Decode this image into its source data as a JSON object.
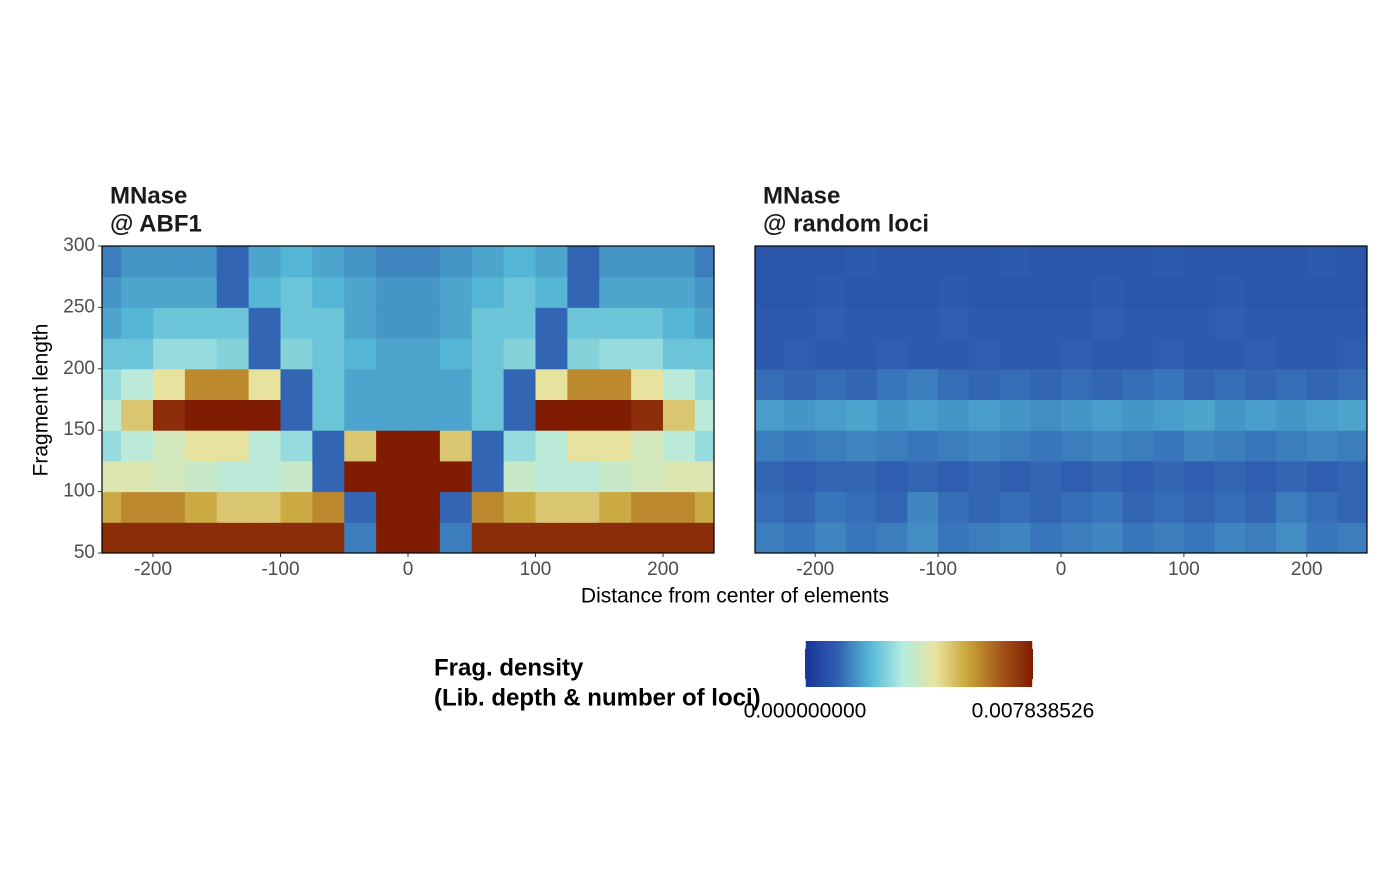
{
  "chart_data": [
    {
      "type": "heatmap",
      "title": "MNase",
      "subtitle": "@ ABF1",
      "x": [
        -237.5,
        -212.5,
        -187.5,
        -162.5,
        -137.5,
        -112.5,
        -87.5,
        -62.5,
        -37.5,
        -12.5,
        12.5,
        37.5,
        62.5,
        87.5,
        112.5,
        137.5,
        162.5,
        187.5,
        212.5,
        237.5
      ],
      "y": [
        62.5,
        87.5,
        112.5,
        137.5,
        162.5,
        187.5,
        212.5,
        237.5,
        262.5,
        287.5
      ],
      "values": [
        [
          0.0075,
          0.0075,
          0.0075,
          0.0075,
          0.0075,
          0.0075,
          0.0075,
          0.0075,
          0.0015,
          0.0078,
          0.0078,
          0.0015,
          0.0075,
          0.0075,
          0.0075,
          0.0075,
          0.0075,
          0.0075,
          0.0075,
          0.0075
        ],
        [
          0.0055,
          0.006,
          0.006,
          0.0055,
          0.005,
          0.005,
          0.0055,
          0.006,
          0.0012,
          0.0078,
          0.0078,
          0.0012,
          0.006,
          0.0055,
          0.005,
          0.005,
          0.0055,
          0.006,
          0.006,
          0.0055
        ],
        [
          0.0042,
          0.0042,
          0.004,
          0.0038,
          0.0035,
          0.0035,
          0.0038,
          0.0012,
          0.0078,
          0.0078,
          0.0078,
          0.0078,
          0.0012,
          0.0038,
          0.0035,
          0.0035,
          0.0038,
          0.004,
          0.0042,
          0.0042
        ],
        [
          0.003,
          0.0035,
          0.004,
          0.0045,
          0.0045,
          0.0035,
          0.003,
          0.0012,
          0.005,
          0.0078,
          0.0078,
          0.005,
          0.0012,
          0.003,
          0.0035,
          0.0045,
          0.0045,
          0.004,
          0.0035,
          0.003
        ],
        [
          0.0035,
          0.005,
          0.0075,
          0.0078,
          0.0078,
          0.0078,
          0.0012,
          0.0025,
          0.002,
          0.002,
          0.002,
          0.002,
          0.0025,
          0.0012,
          0.0078,
          0.0078,
          0.0078,
          0.0075,
          0.005,
          0.0035
        ],
        [
          0.003,
          0.0035,
          0.0045,
          0.006,
          0.006,
          0.0045,
          0.0012,
          0.0025,
          0.002,
          0.002,
          0.002,
          0.002,
          0.0025,
          0.0012,
          0.0045,
          0.006,
          0.006,
          0.0045,
          0.0035,
          0.003
        ],
        [
          0.0025,
          0.0025,
          0.003,
          0.003,
          0.0028,
          0.0012,
          0.0028,
          0.0025,
          0.0022,
          0.002,
          0.002,
          0.0022,
          0.0025,
          0.0028,
          0.0012,
          0.0028,
          0.003,
          0.003,
          0.0025,
          0.0025
        ],
        [
          0.002,
          0.0022,
          0.0025,
          0.0025,
          0.0025,
          0.0012,
          0.0025,
          0.0025,
          0.002,
          0.0018,
          0.0018,
          0.002,
          0.0025,
          0.0025,
          0.0012,
          0.0025,
          0.0025,
          0.0025,
          0.0022,
          0.002
        ],
        [
          0.0018,
          0.002,
          0.002,
          0.002,
          0.0012,
          0.0022,
          0.0025,
          0.0022,
          0.002,
          0.0018,
          0.0018,
          0.002,
          0.0022,
          0.0025,
          0.0022,
          0.0012,
          0.002,
          0.002,
          0.002,
          0.0018
        ],
        [
          0.0015,
          0.0018,
          0.0018,
          0.0018,
          0.0012,
          0.002,
          0.0022,
          0.002,
          0.0018,
          0.0016,
          0.0016,
          0.0018,
          0.002,
          0.0022,
          0.002,
          0.0012,
          0.0018,
          0.0018,
          0.0018,
          0.0015
        ]
      ],
      "xlim": [
        -240,
        240
      ],
      "ylim": [
        50,
        300
      ],
      "xticks": [
        -200,
        -100,
        0,
        100,
        200
      ],
      "yticks": [
        50,
        100,
        150,
        200,
        250,
        300
      ]
    },
    {
      "type": "heatmap",
      "title": "MNase",
      "subtitle": "@ random loci",
      "x": [
        -237.5,
        -212.5,
        -187.5,
        -162.5,
        -137.5,
        -112.5,
        -87.5,
        -62.5,
        -37.5,
        -12.5,
        12.5,
        37.5,
        62.5,
        87.5,
        112.5,
        137.5,
        162.5,
        187.5,
        212.5,
        237.5
      ],
      "y": [
        62.5,
        87.5,
        112.5,
        137.5,
        162.5,
        187.5,
        212.5,
        237.5,
        262.5,
        287.5
      ],
      "values": [
        [
          0.0015,
          0.0014,
          0.0016,
          0.0014,
          0.0015,
          0.0017,
          0.0014,
          0.0015,
          0.0016,
          0.0014,
          0.0015,
          0.0016,
          0.0014,
          0.0015,
          0.0014,
          0.0016,
          0.0015,
          0.0017,
          0.0014,
          0.0015
        ],
        [
          0.0013,
          0.0012,
          0.0014,
          0.0013,
          0.0012,
          0.0016,
          0.0013,
          0.0012,
          0.0013,
          0.0012,
          0.0013,
          0.0014,
          0.0012,
          0.0013,
          0.0012,
          0.0013,
          0.0012,
          0.0015,
          0.0013,
          0.0012
        ],
        [
          0.0012,
          0.0011,
          0.0012,
          0.0012,
          0.0011,
          0.0012,
          0.0011,
          0.0012,
          0.0011,
          0.0012,
          0.0011,
          0.0012,
          0.0011,
          0.0012,
          0.0011,
          0.0012,
          0.0011,
          0.0012,
          0.0011,
          0.0012
        ],
        [
          0.0015,
          0.0014,
          0.0015,
          0.0016,
          0.0015,
          0.0014,
          0.0015,
          0.0016,
          0.0015,
          0.0014,
          0.0015,
          0.0016,
          0.0015,
          0.0014,
          0.0016,
          0.0015,
          0.0014,
          0.0015,
          0.0016,
          0.0015
        ],
        [
          0.0019,
          0.0018,
          0.0019,
          0.002,
          0.0018,
          0.0019,
          0.0018,
          0.0019,
          0.0018,
          0.0017,
          0.0018,
          0.0019,
          0.0018,
          0.0019,
          0.002,
          0.0018,
          0.0019,
          0.0018,
          0.0019,
          0.002
        ],
        [
          0.0013,
          0.0012,
          0.0013,
          0.0012,
          0.0014,
          0.0015,
          0.0013,
          0.0012,
          0.0013,
          0.0012,
          0.0013,
          0.0012,
          0.0013,
          0.0014,
          0.0012,
          0.0013,
          0.0012,
          0.0013,
          0.0012,
          0.0013
        ],
        [
          0.001,
          0.0011,
          0.001,
          0.001,
          0.0011,
          0.001,
          0.001,
          0.0011,
          0.001,
          0.001,
          0.0011,
          0.001,
          0.001,
          0.0011,
          0.001,
          0.001,
          0.0011,
          0.001,
          0.001,
          0.0011
        ],
        [
          0.001,
          0.001,
          0.0011,
          0.001,
          0.001,
          0.001,
          0.0011,
          0.001,
          0.001,
          0.001,
          0.001,
          0.0011,
          0.001,
          0.001,
          0.001,
          0.0011,
          0.001,
          0.001,
          0.001,
          0.001
        ],
        [
          0.0009,
          0.0009,
          0.001,
          0.0009,
          0.0009,
          0.0009,
          0.001,
          0.0009,
          0.0009,
          0.0009,
          0.0009,
          0.001,
          0.0009,
          0.0009,
          0.0009,
          0.001,
          0.0009,
          0.0009,
          0.0009,
          0.0009
        ],
        [
          0.0009,
          0.0009,
          0.0009,
          0.001,
          0.0009,
          0.0009,
          0.0009,
          0.0009,
          0.001,
          0.0009,
          0.0009,
          0.0009,
          0.0009,
          0.001,
          0.0009,
          0.0009,
          0.0009,
          0.0009,
          0.001,
          0.0009
        ]
      ],
      "xlim": [
        -249,
        249
      ],
      "ylim": [
        50,
        300
      ],
      "xticks": [
        -200,
        -100,
        0,
        100,
        200
      ]
    }
  ],
  "x_label": "Distance from center of elements",
  "y_label": "Fragment length",
  "legend": {
    "title": [
      "Frag. density",
      "(Lib. depth & number of loci)"
    ],
    "clim": [
      0,
      0.007838526
    ],
    "ticks": [
      {
        "value": 0,
        "label": "0.000000000"
      },
      0.007838526
    ],
    "colors": [
      "#1a3399",
      "#2f5fb0",
      "#55b8d6",
      "#b4ece0",
      "#e8e4a0",
      "#c9a43a",
      "#a5581a",
      "#7f1a00"
    ]
  }
}
